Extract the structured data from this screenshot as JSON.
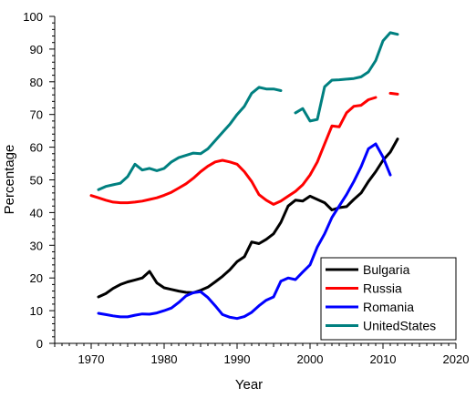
{
  "chart_data": {
    "type": "line",
    "xlabel": "Year",
    "ylabel": "Percentage",
    "xlim": [
      1965,
      2020
    ],
    "ylim": [
      0,
      100
    ],
    "x_ticks": [
      1970,
      1980,
      1990,
      2000,
      2010,
      2020
    ],
    "y_ticks": [
      0,
      10,
      20,
      30,
      40,
      50,
      60,
      70,
      80,
      90,
      100
    ],
    "grid": false,
    "legend_position": "bottom-right",
    "series": [
      {
        "name": "Bulgaria",
        "color": "#000000",
        "segments": [
          [
            [
              1971,
              14.2
            ],
            [
              1972,
              15.2
            ],
            [
              1973,
              16.8
            ],
            [
              1974,
              18.0
            ],
            [
              1975,
              18.8
            ],
            [
              1976,
              19.4
            ],
            [
              1977,
              20.0
            ],
            [
              1978,
              22.0
            ],
            [
              1979,
              18.5
            ],
            [
              1980,
              17.0
            ],
            [
              1981,
              16.5
            ],
            [
              1982,
              16.0
            ],
            [
              1983,
              15.6
            ],
            [
              1984,
              15.5
            ],
            [
              1985,
              16.2
            ],
            [
              1986,
              17.2
            ],
            [
              1987,
              18.8
            ],
            [
              1988,
              20.5
            ],
            [
              1989,
              22.5
            ],
            [
              1990,
              25.0
            ],
            [
              1991,
              26.5
            ],
            [
              1992,
              31.0
            ],
            [
              1993,
              30.5
            ],
            [
              1994,
              31.8
            ],
            [
              1995,
              33.5
            ],
            [
              1996,
              37.0
            ],
            [
              1997,
              42.0
            ],
            [
              1998,
              43.8
            ],
            [
              1999,
              43.5
            ],
            [
              2000,
              45.0
            ],
            [
              2001,
              44.0
            ],
            [
              2002,
              43.0
            ],
            [
              2003,
              40.8
            ],
            [
              2004,
              41.5
            ],
            [
              2005,
              41.8
            ],
            [
              2006,
              44.0
            ],
            [
              2007,
              46.0
            ],
            [
              2008,
              49.5
            ],
            [
              2009,
              52.5
            ],
            [
              2010,
              56.0
            ],
            [
              2011,
              58.5
            ],
            [
              2012,
              62.5
            ]
          ]
        ]
      },
      {
        "name": "Russia",
        "color": "#ff0000",
        "segments": [
          [
            [
              1970,
              45.2
            ],
            [
              1971,
              44.5
            ],
            [
              1972,
              43.8
            ],
            [
              1973,
              43.2
            ],
            [
              1974,
              43.0
            ],
            [
              1975,
              43.0
            ],
            [
              1976,
              43.2
            ],
            [
              1977,
              43.5
            ],
            [
              1978,
              44.0
            ],
            [
              1979,
              44.5
            ],
            [
              1980,
              45.3
            ],
            [
              1981,
              46.2
            ],
            [
              1982,
              47.5
            ],
            [
              1983,
              48.8
            ],
            [
              1984,
              50.5
            ],
            [
              1985,
              52.5
            ],
            [
              1986,
              54.2
            ],
            [
              1987,
              55.5
            ],
            [
              1988,
              56.0
            ],
            [
              1989,
              55.5
            ],
            [
              1990,
              54.8
            ],
            [
              1991,
              52.5
            ],
            [
              1992,
              49.5
            ],
            [
              1993,
              45.5
            ],
            [
              1994,
              43.8
            ],
            [
              1995,
              42.5
            ],
            [
              1996,
              43.5
            ],
            [
              1997,
              45.0
            ],
            [
              1998,
              46.5
            ],
            [
              1999,
              48.5
            ],
            [
              2000,
              51.5
            ],
            [
              2001,
              55.5
            ],
            [
              2002,
              61.0
            ],
            [
              2003,
              66.5
            ],
            [
              2004,
              66.2
            ],
            [
              2005,
              70.5
            ],
            [
              2006,
              72.5
            ],
            [
              2007,
              72.8
            ],
            [
              2008,
              74.5
            ],
            [
              2009,
              75.2
            ]
          ],
          [
            [
              2011,
              76.5
            ],
            [
              2012,
              76.2
            ]
          ]
        ]
      },
      {
        "name": "Romania",
        "color": "#0000ff",
        "segments": [
          [
            [
              1971,
              9.2
            ],
            [
              1972,
              8.8
            ],
            [
              1973,
              8.4
            ],
            [
              1974,
              8.1
            ],
            [
              1975,
              8.1
            ],
            [
              1976,
              8.6
            ],
            [
              1977,
              9.0
            ],
            [
              1978,
              8.9
            ],
            [
              1979,
              9.3
            ],
            [
              1980,
              10.0
            ],
            [
              1981,
              10.8
            ],
            [
              1982,
              12.5
            ],
            [
              1983,
              14.5
            ],
            [
              1984,
              15.5
            ],
            [
              1985,
              15.8
            ],
            [
              1986,
              14.0
            ],
            [
              1987,
              11.5
            ],
            [
              1988,
              8.8
            ],
            [
              1989,
              8.0
            ],
            [
              1990,
              7.6
            ],
            [
              1991,
              8.2
            ],
            [
              1992,
              9.5
            ],
            [
              1993,
              11.5
            ],
            [
              1994,
              13.2
            ],
            [
              1995,
              14.2
            ],
            [
              1996,
              19.0
            ],
            [
              1997,
              20.0
            ],
            [
              1998,
              19.5
            ],
            [
              1999,
              21.8
            ],
            [
              2000,
              24.0
            ],
            [
              2001,
              29.5
            ],
            [
              2002,
              33.5
            ],
            [
              2003,
              38.5
            ],
            [
              2004,
              42.0
            ],
            [
              2005,
              45.5
            ],
            [
              2006,
              49.5
            ],
            [
              2007,
              54.0
            ],
            [
              2008,
              59.5
            ],
            [
              2009,
              61.0
            ],
            [
              2010,
              57.0
            ],
            [
              2011,
              51.5
            ]
          ]
        ]
      },
      {
        "name": "UnitedStates",
        "color": "#008080",
        "segments": [
          [
            [
              1971,
              47.0
            ],
            [
              1972,
              48.0
            ],
            [
              1973,
              48.5
            ],
            [
              1974,
              49.0
            ],
            [
              1975,
              51.0
            ],
            [
              1976,
              54.8
            ],
            [
              1977,
              53.0
            ],
            [
              1978,
              53.5
            ],
            [
              1979,
              52.8
            ],
            [
              1980,
              53.5
            ],
            [
              1981,
              55.5
            ],
            [
              1982,
              56.8
            ],
            [
              1983,
              57.5
            ],
            [
              1984,
              58.2
            ],
            [
              1985,
              58.0
            ],
            [
              1986,
              59.5
            ],
            [
              1987,
              62.0
            ],
            [
              1988,
              64.5
            ],
            [
              1989,
              67.0
            ],
            [
              1990,
              70.0
            ],
            [
              1991,
              72.5
            ],
            [
              1992,
              76.5
            ],
            [
              1993,
              78.3
            ],
            [
              1994,
              77.8
            ],
            [
              1995,
              77.8
            ],
            [
              1996,
              77.3
            ]
          ],
          [
            [
              1998,
              70.5
            ],
            [
              1999,
              71.8
            ],
            [
              2000,
              68.0
            ],
            [
              2001,
              68.5
            ],
            [
              2002,
              78.5
            ],
            [
              2003,
              80.5
            ],
            [
              2004,
              80.6
            ],
            [
              2005,
              80.8
            ],
            [
              2006,
              81.0
            ],
            [
              2007,
              81.5
            ],
            [
              2008,
              83.0
            ],
            [
              2009,
              86.5
            ],
            [
              2010,
              92.5
            ],
            [
              2011,
              95.0
            ],
            [
              2012,
              94.5
            ]
          ]
        ]
      }
    ]
  }
}
